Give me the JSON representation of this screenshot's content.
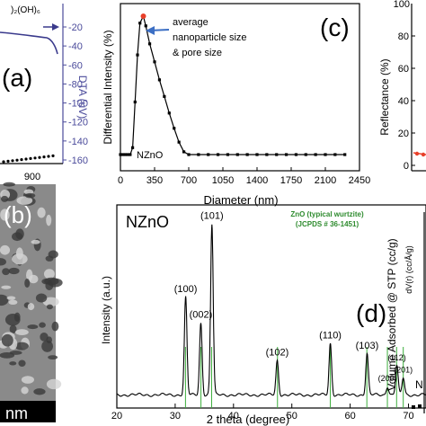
{
  "panel_a": {
    "letter": "(a)",
    "right_axis_label": "DTA (uV)",
    "right_ticks": [
      "-20",
      "-40",
      "-60",
      "-80",
      "-100",
      "-120",
      "-140",
      "-160"
    ],
    "x_tick": "900",
    "top_label_fragment": ")₂(OH)₆"
  },
  "panel_b": {
    "letter": "(b)",
    "scalebar_label": "nm"
  },
  "panel_right": {
    "top_tick": "100",
    "ylabel_top": "Reflectance (%)",
    "ticks_top": [
      "80",
      "60",
      "40",
      "20",
      "0"
    ],
    "ylabel_bottom": "Volume Adsorbed @ STP (cc/g)",
    "inset_ylabel": "dV(r) (cc/Å/g)",
    "fragment_letter": "N"
  },
  "chart_data": [
    {
      "panel": "(c)",
      "type": "line",
      "xlabel": "Diameter (nm)",
      "ylabel": "Differential Intensity (%)",
      "xlim": [
        0,
        2450
      ],
      "x_ticks": [
        0,
        350,
        700,
        1050,
        1400,
        1750,
        2100,
        2450
      ],
      "legend_entry": "NZnO",
      "annotation": "average\nnanoparticle size\n& pore size",
      "annotation_point": {
        "x": 235,
        "y": 100
      },
      "series": [
        {
          "name": "NZnO",
          "x": [
            0,
            25,
            50,
            75,
            100,
            125,
            150,
            175,
            200,
            235,
            260,
            300,
            350,
            400,
            450,
            500,
            550,
            600,
            650,
            700,
            800,
            900,
            1000,
            1100,
            1200,
            1300,
            1400,
            1500,
            1600,
            1700,
            1800,
            1900,
            2000,
            2100,
            2200,
            2300
          ],
          "y": [
            0,
            0,
            0,
            0,
            0,
            5,
            38,
            72,
            95,
            100,
            93,
            80,
            67,
            54,
            42,
            30,
            19,
            9,
            2,
            0,
            0,
            0,
            0,
            0,
            0,
            0,
            0,
            0,
            0,
            0,
            0,
            0,
            0,
            0,
            0,
            0
          ]
        }
      ]
    },
    {
      "panel": "(d)",
      "type": "line",
      "xlabel": "2 theta (degree)",
      "ylabel": "Intensity (a.u.)",
      "xlim": [
        20,
        73
      ],
      "x_ticks": [
        20,
        30,
        40,
        50,
        60,
        70
      ],
      "sample_label": "NZnO",
      "reference_label": "ZnO (typical wurtzite)",
      "reference_card": "(JCPDS # 36-1451)",
      "peaks": [
        {
          "hkl": "(100)",
          "two_theta": 31.8,
          "intensity": 0.57
        },
        {
          "hkl": "(002)",
          "two_theta": 34.4,
          "intensity": 0.42
        },
        {
          "hkl": "(101)",
          "two_theta": 36.3,
          "intensity": 1.0
        },
        {
          "hkl": "(102)",
          "two_theta": 47.5,
          "intensity": 0.2
        },
        {
          "hkl": "(110)",
          "two_theta": 56.6,
          "intensity": 0.3
        },
        {
          "hkl": "(103)",
          "two_theta": 62.9,
          "intensity": 0.24
        },
        {
          "hkl": "(200)",
          "two_theta": 66.4,
          "intensity": 0.05
        },
        {
          "hkl": "(112)",
          "two_theta": 68.0,
          "intensity": 0.17
        },
        {
          "hkl": "(201)",
          "two_theta": 69.1,
          "intensity": 0.1
        }
      ],
      "reference_lines": [
        31.77,
        34.42,
        36.25,
        47.54,
        56.6,
        62.86,
        66.38,
        67.96,
        69.1
      ],
      "colors": {
        "curve": "#000000",
        "reference": "#3cae3c",
        "reference_text": "#2e8b2e"
      }
    }
  ],
  "colors": {
    "dta_curve": "#3a3a8c",
    "dta_axis": "#4b4b9b",
    "annotation_arrow": "#3c6fc4",
    "annotation_point": "#e8402a"
  }
}
